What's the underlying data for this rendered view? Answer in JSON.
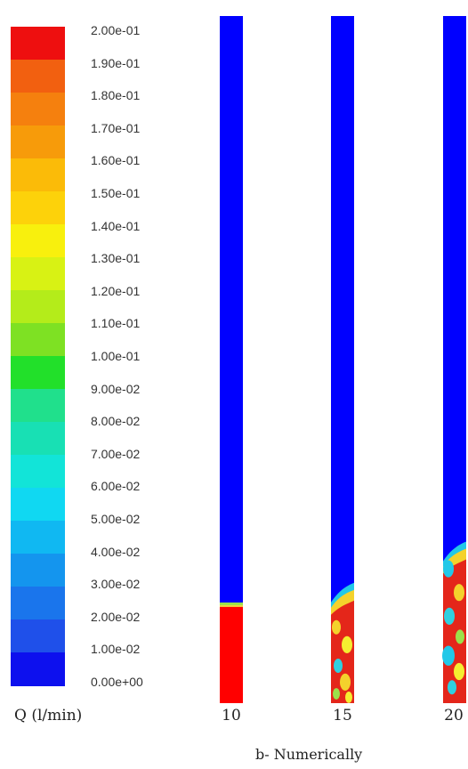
{
  "chart_data": {
    "type": "heatmap",
    "legend": {
      "title": "Q (l/min)",
      "levels": [
        "2.00e-01",
        "1.90e-01",
        "1.80e-01",
        "1.70e-01",
        "1.60e-01",
        "1.50e-01",
        "1.40e-01",
        "1.30e-01",
        "1.20e-01",
        "1.10e-01",
        "1.00e-01",
        "9.00e-02",
        "8.00e-02",
        "7.00e-02",
        "6.00e-02",
        "5.00e-02",
        "4.00e-02",
        "3.00e-02",
        "2.00e-02",
        "1.00e-02",
        "0.00e+00"
      ],
      "band_colors": [
        "#ee0f0f",
        "#f26010",
        "#f5800e",
        "#f79b0a",
        "#fbbb08",
        "#fdd20a",
        "#f8f00d",
        "#d8f214",
        "#b4ec1a",
        "#7ee123",
        "#22e02a",
        "#20e08c",
        "#18e0b4",
        "#12e4d8",
        "#10d8f2",
        "#10b8f2",
        "#1495ee",
        "#1a75ec",
        "#1f50ea",
        "#0d10ee"
      ]
    },
    "columns": [
      {
        "label": "10",
        "fill_fraction": 0.14
      },
      {
        "label": "15",
        "fill_fraction": 0.17
      },
      {
        "label": "20",
        "fill_fraction": 0.23
      }
    ],
    "background_color": "#0000ff",
    "fill_color": "#ff0000"
  },
  "caption": "b- Numerically"
}
